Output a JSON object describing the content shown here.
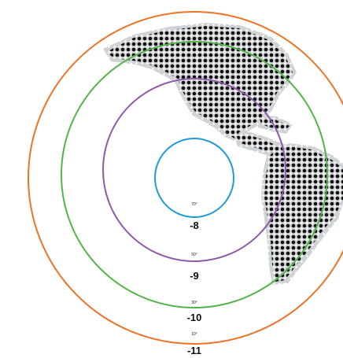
{
  "rings": [
    {
      "degree_label": "70°",
      "value_label": "-8",
      "color": "#1f9bd7"
    },
    {
      "degree_label": "50°",
      "value_label": "-9",
      "color": "#8e5aa8"
    },
    {
      "degree_label": "30°",
      "value_label": "-10",
      "color": "#55b449"
    },
    {
      "degree_label": "10°",
      "value_label": "-11",
      "color": "#ee7326"
    }
  ],
  "map": {
    "dot_color": "#111111",
    "halo_color": "#cfd3d6",
    "depicts": "americas-dot-map-icon"
  }
}
